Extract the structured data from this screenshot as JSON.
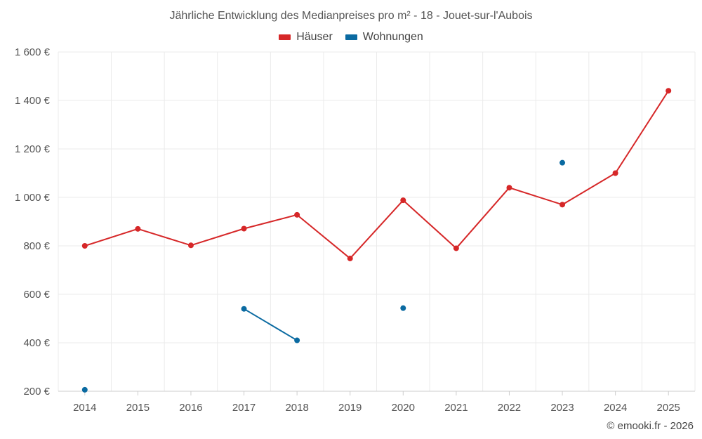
{
  "chart_data": {
    "type": "line",
    "title": "Jährliche Entwicklung des Medianpreises pro m² - 18 - Jouet-sur-l'Aubois",
    "categories": [
      "2014",
      "2015",
      "2016",
      "2017",
      "2018",
      "2019",
      "2020",
      "2021",
      "2022",
      "2023",
      "2024",
      "2025"
    ],
    "series": [
      {
        "name": "Häuser",
        "color": "#d62728",
        "values": [
          800,
          870,
          802,
          871,
          928,
          748,
          988,
          790,
          1040,
          970,
          1100,
          1440
        ]
      },
      {
        "name": "Wohnungen",
        "color": "#0a6aa1",
        "values": [
          206,
          null,
          null,
          540,
          410,
          null,
          543,
          null,
          null,
          1143,
          null,
          null
        ]
      }
    ],
    "ylim": [
      200,
      1600
    ],
    "yticks": [
      200,
      400,
      600,
      800,
      1000,
      1200,
      1400,
      1600
    ],
    "ytick_labels": [
      "200 €",
      "400 €",
      "600 €",
      "800 €",
      "1 000 €",
      "1 200 €",
      "1 400 €",
      "1 600 €"
    ],
    "xlabel": "",
    "ylabel": "",
    "grid": true,
    "legend_position": "top-center"
  },
  "footer": "© emooki.fr - 2026"
}
